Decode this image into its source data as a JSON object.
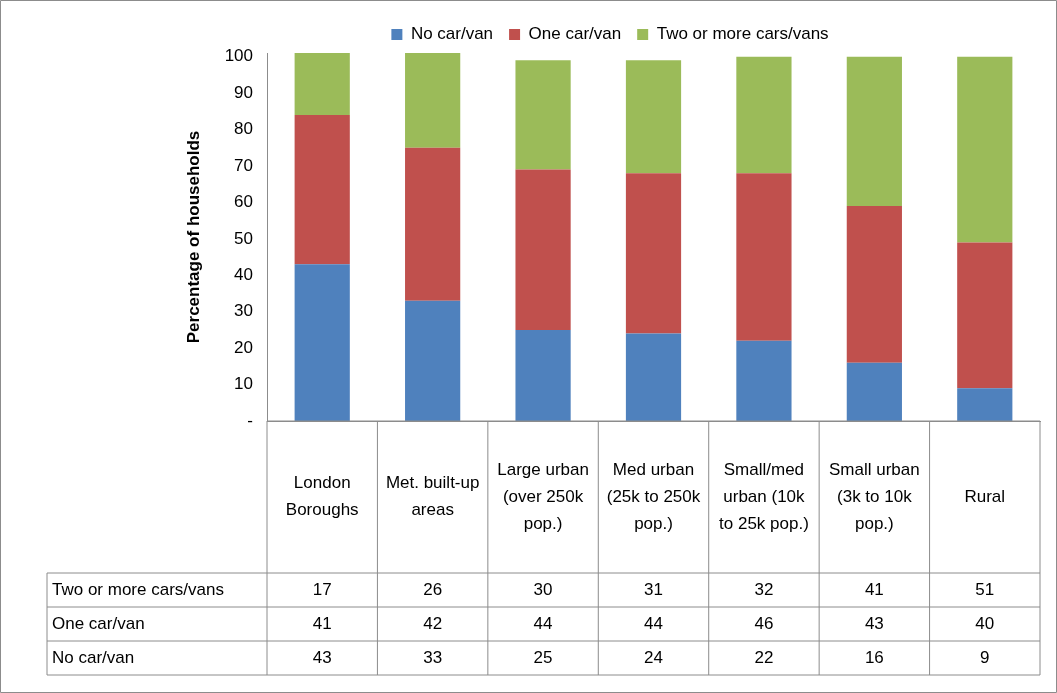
{
  "chart_data": {
    "type": "bar",
    "stacked": true,
    "ylabel": "Percentage of households",
    "categories": [
      "London Boroughs",
      "Met. built-up areas",
      "Large urban (over 250k pop.)",
      "Med urban (25k to 250k pop.)",
      "Small/med urban (10k to 25k pop.)",
      "Small urban (3k to 10k pop.)",
      "Rural"
    ],
    "series": [
      {
        "name": "No car/van",
        "color": "#4f81bd",
        "values": [
          43,
          33,
          25,
          24,
          22,
          16,
          9
        ]
      },
      {
        "name": "One car/van",
        "color": "#c0504d",
        "values": [
          41,
          42,
          44,
          44,
          46,
          43,
          40
        ]
      },
      {
        "name": "Two or more cars/vans",
        "color": "#9bbb59",
        "values": [
          17,
          26,
          30,
          31,
          32,
          41,
          51
        ]
      }
    ],
    "ylim": [
      0,
      101
    ],
    "yticks": [
      {
        "value": 0,
        "label": "-"
      },
      10,
      20,
      30,
      40,
      50,
      60,
      70,
      80,
      90,
      100
    ],
    "legend": "top",
    "grid": false,
    "data_labels": true
  }
}
